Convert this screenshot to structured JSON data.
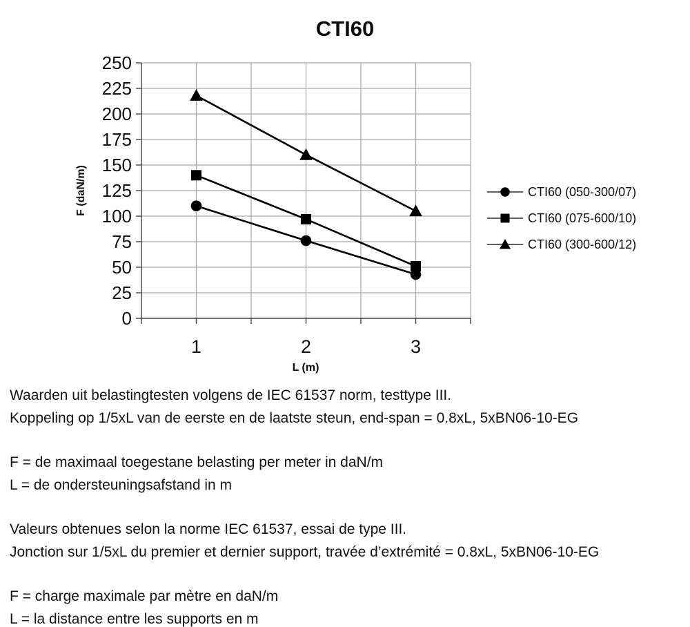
{
  "chart_data": {
    "type": "line",
    "title": "CTI60",
    "xlabel": "L (m)",
    "ylabel": "F (daN/m)",
    "x": [
      1,
      2,
      3
    ],
    "series": [
      {
        "name": "CTI60 (050-300/07)",
        "marker": "circle",
        "values": [
          110,
          76,
          43
        ]
      },
      {
        "name": "CTI60 (075-600/10)",
        "marker": "square",
        "values": [
          140,
          97,
          51
        ]
      },
      {
        "name": "CTI60 (300-600/12)",
        "marker": "triangle",
        "values": [
          218,
          160,
          105
        ]
      }
    ],
    "xlim": [
      0.5,
      3.5
    ],
    "xtick_step": 0.5,
    "ylim": [
      0,
      250
    ],
    "ytick_step": 25,
    "grid": true,
    "legend_position": "right",
    "line_color": "#000000",
    "grid_color": "#a6a6a6"
  },
  "notes": {
    "nl": {
      "line1": "Waarden uit belastingtesten volgens de IEC 61537 norm, testtype III.",
      "line2": "Koppeling op 1/5xL van de eerste en de laatste steun, end-span = 0.8xL, 5xBN06-10-EG",
      "f_def": "F = de maximaal toegestane belasting per meter in daN/m",
      "l_def": "L = de ondersteuningsafstand in m"
    },
    "fr": {
      "line1": "Valeurs obtenues selon la norme IEC 61537, essai de type III.",
      "line2": "Jonction sur 1/5xL du premier et dernier support, travée d’extrémité = 0.8xL, 5xBN06-10-EG",
      "f_def": "F = charge maximale par mètre en daN/m",
      "l_def": "L = la distance entre les supports en m"
    }
  }
}
